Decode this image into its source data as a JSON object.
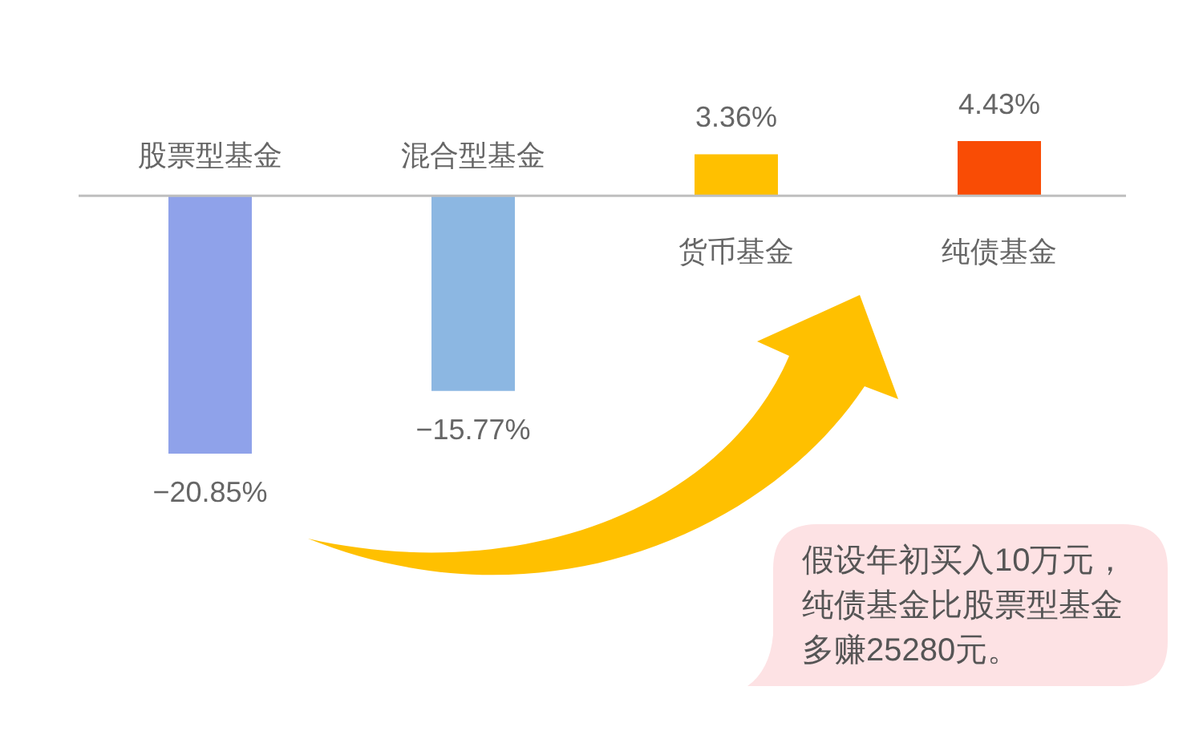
{
  "chart_data": {
    "type": "bar",
    "categories": [
      "股票型基金",
      "混合型基金",
      "货币基金",
      "纯债基金"
    ],
    "values": [
      -20.85,
      -15.77,
      3.36,
      4.43
    ],
    "colors": [
      "#8fa2ea",
      "#8cb7e2",
      "#ffc000",
      "#f94c05"
    ],
    "value_labels": [
      "−20.85%",
      "−15.77%",
      "3.36%",
      "4.43%"
    ],
    "annotations": [
      "假设年初买入10万元，纯债基金比股票型基金多赚25280元。"
    ]
  }
}
